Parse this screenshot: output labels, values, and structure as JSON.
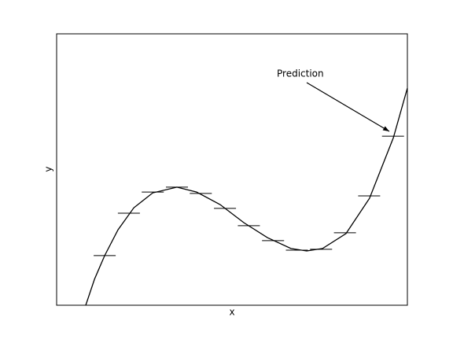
{
  "chart_data": {
    "type": "line",
    "xlabel": "x",
    "ylabel": "y",
    "annotation": "Prediction",
    "xlim": [
      0,
      10
    ],
    "ylim": [
      0,
      10
    ],
    "series": [
      {
        "type": "line",
        "color": "#000000",
        "x": [
          0.83,
          1.08,
          1.37,
          1.75,
          2.2,
          2.74,
          3.43,
          3.99,
          4.66,
          5.34,
          6.01,
          6.68,
          7.13,
          7.58,
          8.25,
          8.92,
          9.6,
          10.0
        ],
        "values": [
          0,
          0.96,
          1.83,
          2.78,
          3.59,
          4.14,
          4.35,
          4.17,
          3.71,
          3.04,
          2.49,
          2.09,
          2.0,
          2.09,
          2.64,
          3.94,
          6.17,
          8.0
        ]
      },
      {
        "type": "segment",
        "color": "#000000",
        "x": [
          1.37,
          2.06,
          2.74,
          3.43,
          4.11,
          4.8,
          5.48,
          6.17,
          6.85,
          7.54,
          8.22,
          8.91,
          9.59
        ],
        "values": [
          1.83,
          3.39,
          4.17,
          4.35,
          4.12,
          3.57,
          2.93,
          2.38,
          2.03,
          2.06,
          2.67,
          4.03,
          6.23
        ]
      }
    ]
  }
}
